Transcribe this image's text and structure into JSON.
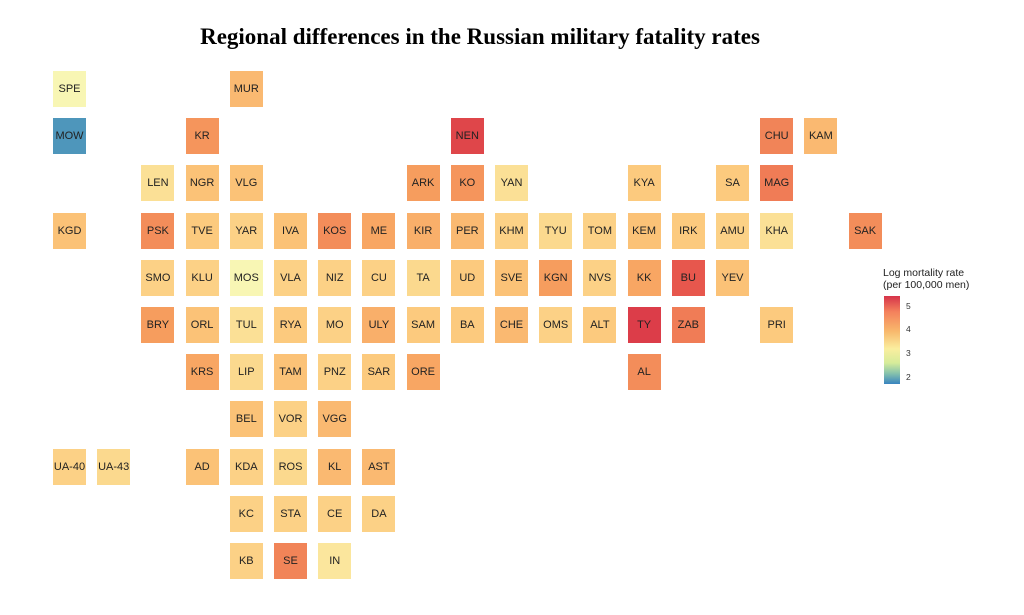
{
  "chart_data": {
    "type": "heatmap",
    "title": "Regional differences in the Russian military fatality rates",
    "legend": {
      "title_line1": "Log mortality rate",
      "title_line2": "(per 100,000 men)",
      "ticks": [
        "5",
        "4",
        "3",
        "2"
      ],
      "range": [
        1.7,
        5.4
      ],
      "placement": "right"
    },
    "color_scale": [
      "#3a86c0",
      "#8ec7ac",
      "#d4eb99",
      "#fbf7b6",
      "#fbe49a",
      "#fcc67a",
      "#f7a05f",
      "#f07e56",
      "#e7584d",
      "#d83448"
    ],
    "regions": [
      {
        "code": "SPE",
        "row": 0,
        "col": 0,
        "value": 2.9
      },
      {
        "code": "MUR",
        "row": 0,
        "col": 4,
        "value": 3.9
      },
      {
        "code": "MOW",
        "row": 1,
        "col": 0,
        "value": 1.8
      },
      {
        "code": "KR",
        "row": 1,
        "col": 3,
        "value": 4.3
      },
      {
        "code": "NEN",
        "row": 1,
        "col": 9,
        "value": 5.2
      },
      {
        "code": "CHU",
        "row": 1,
        "col": 16,
        "value": 4.5
      },
      {
        "code": "KAM",
        "row": 1,
        "col": 17,
        "value": 3.9
      },
      {
        "code": "LEN",
        "row": 2,
        "col": 2,
        "value": 3.4
      },
      {
        "code": "NGR",
        "row": 2,
        "col": 3,
        "value": 3.8
      },
      {
        "code": "VLG",
        "row": 2,
        "col": 4,
        "value": 3.8
      },
      {
        "code": "ARK",
        "row": 2,
        "col": 8,
        "value": 4.2
      },
      {
        "code": "KO",
        "row": 2,
        "col": 9,
        "value": 4.3
      },
      {
        "code": "YAN",
        "row": 2,
        "col": 10,
        "value": 3.4
      },
      {
        "code": "KYA",
        "row": 2,
        "col": 13,
        "value": 3.7
      },
      {
        "code": "SA",
        "row": 2,
        "col": 15,
        "value": 3.7
      },
      {
        "code": "MAG",
        "row": 2,
        "col": 16,
        "value": 4.6
      },
      {
        "code": "KGD",
        "row": 3,
        "col": 0,
        "value": 3.8
      },
      {
        "code": "PSK",
        "row": 3,
        "col": 2,
        "value": 4.4
      },
      {
        "code": "TVE",
        "row": 3,
        "col": 3,
        "value": 3.7
      },
      {
        "code": "YAR",
        "row": 3,
        "col": 4,
        "value": 3.6
      },
      {
        "code": "IVA",
        "row": 3,
        "col": 5,
        "value": 3.8
      },
      {
        "code": "KOS",
        "row": 3,
        "col": 6,
        "value": 4.4
      },
      {
        "code": "ME",
        "row": 3,
        "col": 7,
        "value": 4.1
      },
      {
        "code": "KIR",
        "row": 3,
        "col": 8,
        "value": 4.0
      },
      {
        "code": "PER",
        "row": 3,
        "col": 9,
        "value": 3.9
      },
      {
        "code": "KHM",
        "row": 3,
        "col": 10,
        "value": 3.6
      },
      {
        "code": "TYU",
        "row": 3,
        "col": 11,
        "value": 3.5
      },
      {
        "code": "TOM",
        "row": 3,
        "col": 12,
        "value": 3.6
      },
      {
        "code": "KEM",
        "row": 3,
        "col": 13,
        "value": 3.8
      },
      {
        "code": "IRK",
        "row": 3,
        "col": 14,
        "value": 3.7
      },
      {
        "code": "AMU",
        "row": 3,
        "col": 15,
        "value": 3.6
      },
      {
        "code": "KHA",
        "row": 3,
        "col": 16,
        "value": 3.4
      },
      {
        "code": "SAK",
        "row": 3,
        "col": 18,
        "value": 4.4
      },
      {
        "code": "SMO",
        "row": 4,
        "col": 2,
        "value": 3.6
      },
      {
        "code": "KLU",
        "row": 4,
        "col": 3,
        "value": 3.6
      },
      {
        "code": "MOS",
        "row": 4,
        "col": 4,
        "value": 2.9
      },
      {
        "code": "VLA",
        "row": 4,
        "col": 5,
        "value": 3.6
      },
      {
        "code": "NIZ",
        "row": 4,
        "col": 6,
        "value": 3.6
      },
      {
        "code": "CU",
        "row": 4,
        "col": 7,
        "value": 3.6
      },
      {
        "code": "TA",
        "row": 4,
        "col": 8,
        "value": 3.5
      },
      {
        "code": "UD",
        "row": 4,
        "col": 9,
        "value": 3.7
      },
      {
        "code": "SVE",
        "row": 4,
        "col": 10,
        "value": 3.8
      },
      {
        "code": "KGN",
        "row": 4,
        "col": 11,
        "value": 4.2
      },
      {
        "code": "NVS",
        "row": 4,
        "col": 12,
        "value": 3.6
      },
      {
        "code": "KK",
        "row": 4,
        "col": 13,
        "value": 4.1
      },
      {
        "code": "BU",
        "row": 4,
        "col": 14,
        "value": 5.0
      },
      {
        "code": "YEV",
        "row": 4,
        "col": 15,
        "value": 3.8
      },
      {
        "code": "BRY",
        "row": 5,
        "col": 2,
        "value": 4.2
      },
      {
        "code": "ORL",
        "row": 5,
        "col": 3,
        "value": 3.8
      },
      {
        "code": "TUL",
        "row": 5,
        "col": 4,
        "value": 3.4
      },
      {
        "code": "RYA",
        "row": 5,
        "col": 5,
        "value": 3.7
      },
      {
        "code": "MO",
        "row": 5,
        "col": 6,
        "value": 3.6
      },
      {
        "code": "ULY",
        "row": 5,
        "col": 7,
        "value": 4.0
      },
      {
        "code": "SAM",
        "row": 5,
        "col": 8,
        "value": 3.7
      },
      {
        "code": "BA",
        "row": 5,
        "col": 9,
        "value": 3.7
      },
      {
        "code": "CHE",
        "row": 5,
        "col": 10,
        "value": 3.9
      },
      {
        "code": "OMS",
        "row": 5,
        "col": 11,
        "value": 3.6
      },
      {
        "code": "ALT",
        "row": 5,
        "col": 12,
        "value": 3.7
      },
      {
        "code": "TY",
        "row": 5,
        "col": 13,
        "value": 5.3
      },
      {
        "code": "ZAB",
        "row": 5,
        "col": 14,
        "value": 4.6
      },
      {
        "code": "PRI",
        "row": 5,
        "col": 16,
        "value": 3.7
      },
      {
        "code": "KRS",
        "row": 6,
        "col": 3,
        "value": 4.1
      },
      {
        "code": "LIP",
        "row": 6,
        "col": 4,
        "value": 3.5
      },
      {
        "code": "TAM",
        "row": 6,
        "col": 5,
        "value": 3.8
      },
      {
        "code": "PNZ",
        "row": 6,
        "col": 6,
        "value": 3.6
      },
      {
        "code": "SAR",
        "row": 6,
        "col": 7,
        "value": 3.7
      },
      {
        "code": "ORE",
        "row": 6,
        "col": 8,
        "value": 4.1
      },
      {
        "code": "AL",
        "row": 6,
        "col": 13,
        "value": 4.4
      },
      {
        "code": "BEL",
        "row": 7,
        "col": 4,
        "value": 3.8
      },
      {
        "code": "VOR",
        "row": 7,
        "col": 5,
        "value": 3.6
      },
      {
        "code": "VGG",
        "row": 7,
        "col": 6,
        "value": 3.9
      },
      {
        "code": "UA-40",
        "row": 8,
        "col": 0,
        "value": 3.6
      },
      {
        "code": "UA-43",
        "row": 8,
        "col": 1,
        "value": 3.5
      },
      {
        "code": "AD",
        "row": 8,
        "col": 3,
        "value": 3.8
      },
      {
        "code": "KDA",
        "row": 8,
        "col": 4,
        "value": 3.6
      },
      {
        "code": "ROS",
        "row": 8,
        "col": 5,
        "value": 3.5
      },
      {
        "code": "KL",
        "row": 8,
        "col": 6,
        "value": 3.9
      },
      {
        "code": "AST",
        "row": 8,
        "col": 7,
        "value": 3.9
      },
      {
        "code": "KC",
        "row": 9,
        "col": 4,
        "value": 3.6
      },
      {
        "code": "STA",
        "row": 9,
        "col": 5,
        "value": 3.6
      },
      {
        "code": "CE",
        "row": 9,
        "col": 6,
        "value": 3.6
      },
      {
        "code": "DA",
        "row": 9,
        "col": 7,
        "value": 3.6
      },
      {
        "code": "KB",
        "row": 10,
        "col": 4,
        "value": 3.6
      },
      {
        "code": "SE",
        "row": 10,
        "col": 5,
        "value": 4.5
      },
      {
        "code": "IN",
        "row": 10,
        "col": 6,
        "value": 3.3
      }
    ]
  }
}
